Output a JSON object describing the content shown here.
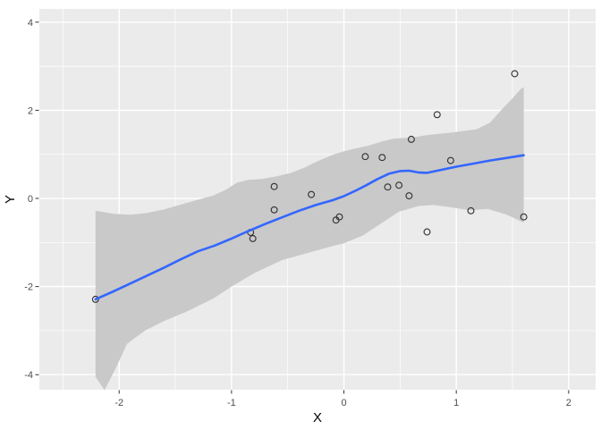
{
  "chart_data": {
    "type": "scatter",
    "title": "",
    "xlabel": "X",
    "ylabel": "Y",
    "grid": true,
    "legend": "none",
    "xlim": [
      -2.71,
      2.24
    ],
    "ylim": [
      -4.34,
      4.3
    ],
    "x_ticks": [
      -2,
      -1,
      0,
      1,
      2
    ],
    "x_tick_labels": [
      "-2",
      "-1",
      "0",
      "1",
      "2"
    ],
    "y_ticks": [
      -4,
      -2,
      0,
      2,
      4
    ],
    "y_tick_labels": [
      "-4",
      "-2",
      "0",
      "2",
      "4"
    ],
    "x_minor_ticks": [
      -2.5,
      -1.5,
      -0.5,
      0.5,
      1.5
    ],
    "y_minor_ticks": [
      -3,
      -1,
      1,
      3
    ],
    "points": [
      [
        -2.21,
        -2.29
      ],
      [
        -0.83,
        -0.77
      ],
      [
        -0.81,
        -0.91
      ],
      [
        -0.62,
        0.27
      ],
      [
        -0.62,
        -0.26
      ],
      [
        -0.29,
        0.09
      ],
      [
        -0.07,
        -0.49
      ],
      [
        -0.04,
        -0.42
      ],
      [
        0.19,
        0.95
      ],
      [
        0.34,
        0.93
      ],
      [
        0.39,
        0.26
      ],
      [
        0.49,
        0.3
      ],
      [
        0.58,
        0.06
      ],
      [
        0.6,
        1.34
      ],
      [
        0.74,
        -0.76
      ],
      [
        0.83,
        1.9
      ],
      [
        0.95,
        0.86
      ],
      [
        1.13,
        -0.28
      ],
      [
        1.52,
        2.83
      ],
      [
        1.6,
        -0.42
      ]
    ],
    "smooth_line": {
      "method": "loess",
      "points": [
        [
          -2.21,
          -2.29
        ],
        [
          -2.05,
          -2.11
        ],
        [
          -1.9,
          -1.93
        ],
        [
          -1.75,
          -1.75
        ],
        [
          -1.6,
          -1.57
        ],
        [
          -1.45,
          -1.38
        ],
        [
          -1.3,
          -1.2
        ],
        [
          -1.15,
          -1.07
        ],
        [
          -1.0,
          -0.91
        ],
        [
          -0.85,
          -0.74
        ],
        [
          -0.7,
          -0.58
        ],
        [
          -0.55,
          -0.43
        ],
        [
          -0.4,
          -0.28
        ],
        [
          -0.25,
          -0.15
        ],
        [
          -0.1,
          -0.04
        ],
        [
          0.0,
          0.05
        ],
        [
          0.1,
          0.17
        ],
        [
          0.2,
          0.3
        ],
        [
          0.3,
          0.44
        ],
        [
          0.4,
          0.56
        ],
        [
          0.5,
          0.62
        ],
        [
          0.58,
          0.63
        ],
        [
          0.66,
          0.59
        ],
        [
          0.74,
          0.58
        ],
        [
          0.85,
          0.64
        ],
        [
          1.0,
          0.72
        ],
        [
          1.15,
          0.79
        ],
        [
          1.3,
          0.86
        ],
        [
          1.45,
          0.92
        ],
        [
          1.6,
          0.98
        ]
      ]
    },
    "confidence_ribbon": {
      "upper": [
        [
          -2.21,
          -0.28
        ],
        [
          -2.05,
          -0.35
        ],
        [
          -1.9,
          -0.37
        ],
        [
          -1.75,
          -0.33
        ],
        [
          -1.6,
          -0.25
        ],
        [
          -1.45,
          -0.14
        ],
        [
          -1.3,
          -0.03
        ],
        [
          -1.16,
          0.07
        ],
        [
          -1.05,
          0.2
        ],
        [
          -0.95,
          0.36
        ],
        [
          -0.85,
          0.42
        ],
        [
          -0.73,
          0.44
        ],
        [
          -0.6,
          0.5
        ],
        [
          -0.47,
          0.58
        ],
        [
          -0.35,
          0.7
        ],
        [
          -0.23,
          0.85
        ],
        [
          -0.1,
          0.99
        ],
        [
          0.0,
          1.07
        ],
        [
          0.1,
          1.13
        ],
        [
          0.21,
          1.19
        ],
        [
          0.35,
          1.3
        ],
        [
          0.45,
          1.36
        ],
        [
          0.6,
          1.38
        ],
        [
          0.75,
          1.44
        ],
        [
          0.97,
          1.5
        ],
        [
          1.18,
          1.57
        ],
        [
          1.3,
          1.72
        ],
        [
          1.42,
          2.06
        ],
        [
          1.5,
          2.27
        ],
        [
          1.58,
          2.5
        ],
        [
          1.6,
          2.52
        ]
      ],
      "lower": [
        [
          -2.21,
          -4.05
        ],
        [
          -2.13,
          -4.35
        ],
        [
          -2.02,
          -3.8
        ],
        [
          -1.93,
          -3.3
        ],
        [
          -1.77,
          -3.0
        ],
        [
          -1.6,
          -2.78
        ],
        [
          -1.4,
          -2.57
        ],
        [
          -1.16,
          -2.27
        ],
        [
          -1.0,
          -2.0
        ],
        [
          -0.8,
          -1.7
        ],
        [
          -0.55,
          -1.4
        ],
        [
          -0.3,
          -1.22
        ],
        [
          -0.1,
          -1.08
        ],
        [
          0.0,
          -1.02
        ],
        [
          0.17,
          -0.84
        ],
        [
          0.33,
          -0.57
        ],
        [
          0.49,
          -0.3
        ],
        [
          0.67,
          -0.17
        ],
        [
          0.8,
          -0.15
        ],
        [
          0.95,
          -0.2
        ],
        [
          1.12,
          -0.27
        ],
        [
          1.28,
          -0.24
        ],
        [
          1.45,
          -0.37
        ],
        [
          1.6,
          -0.55
        ]
      ]
    },
    "colors": {
      "figure_bg": "#FFFFFF",
      "panel_bg": "#EBEBEB",
      "grid": "#FFFFFF",
      "ribbon": "#C9C9C9",
      "smooth_line": "#3366FF",
      "point_stroke": "#333333",
      "tick_mark": "#333333",
      "axis_text": "#4D4D4D",
      "axis_title": "#000000"
    }
  }
}
